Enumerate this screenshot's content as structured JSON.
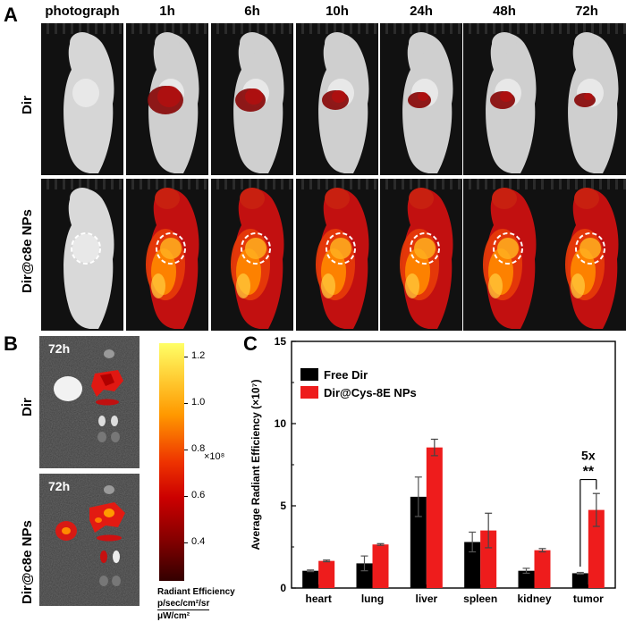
{
  "panelA": {
    "letter": "A",
    "columns": [
      "photograph",
      "1h",
      "6h",
      "10h",
      "24h",
      "48h",
      "72h"
    ],
    "rows": [
      "Dir",
      "Dir@c8e NPs"
    ]
  },
  "panelB": {
    "letter": "B",
    "time_labels": [
      "72h",
      "72h"
    ],
    "rows": [
      "Dir",
      "Dir@c8e NPs"
    ],
    "colorbar": {
      "ticks": [
        "1.2",
        "1.0",
        "0.8",
        "0.6",
        "0.4"
      ],
      "multiplier": "×10⁸",
      "title": "Radiant Efficiency",
      "unit_top": "p/sec/cm²/sr",
      "unit_bottom": "μW/cm²",
      "colors": [
        "#ffff66",
        "#ff9900",
        "#ee2200",
        "#990000",
        "#330000"
      ]
    }
  },
  "panelC": {
    "letter": "C",
    "significance": "5x",
    "stars": "**"
  },
  "chart_data": {
    "type": "bar",
    "categories": [
      "heart",
      "lung",
      "liver",
      "spleen",
      "kidney",
      "tumor"
    ],
    "series": [
      {
        "name": "Free Dir",
        "color": "#000000",
        "values": [
          1.05,
          1.5,
          5.55,
          2.8,
          1.05,
          0.9
        ],
        "errors": [
          0.05,
          0.45,
          1.2,
          0.6,
          0.15,
          0.05
        ]
      },
      {
        "name": "Dir@Cys-8E NPs",
        "color": "#ee1c1c",
        "values": [
          1.65,
          2.65,
          8.55,
          3.5,
          2.3,
          4.75
        ],
        "errors": [
          0.05,
          0.05,
          0.5,
          1.05,
          0.1,
          1.0
        ]
      }
    ],
    "ylabel": "Average Radiant Efficiency (×10⁷)",
    "xlabel": "",
    "ylim": [
      0,
      15
    ],
    "yticks": [
      0,
      5,
      10,
      15
    ],
    "legend_position": "top-left",
    "grid": false
  }
}
